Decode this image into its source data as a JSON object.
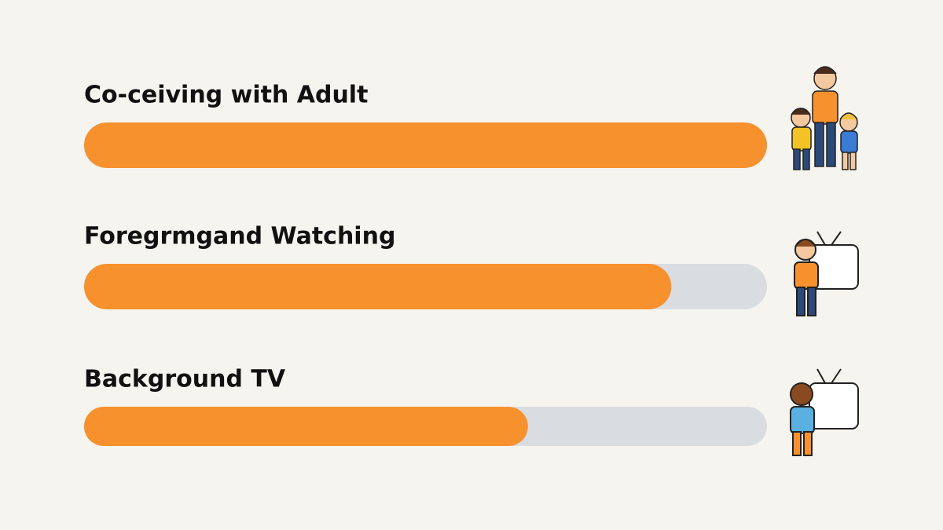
{
  "chart_data": {
    "type": "bar",
    "orientation": "horizontal",
    "categories": [
      "Co-ceiving with Adult",
      "Foregrmgand Watching",
      "Background TV"
    ],
    "values": [
      100,
      86,
      65
    ],
    "color": "#f7912e",
    "track_color": "#d9dce0",
    "xlim": [
      0,
      100
    ]
  }
}
